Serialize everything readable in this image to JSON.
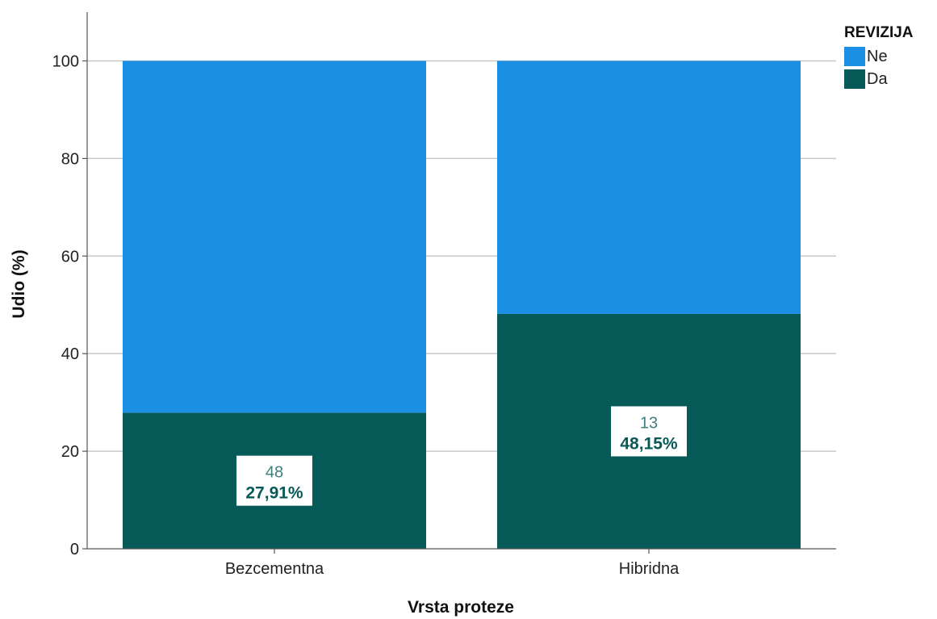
{
  "chart_data": {
    "type": "bar",
    "stacked": true,
    "categories": [
      "Bezcementna",
      "Hibridna"
    ],
    "series": [
      {
        "name": "Da",
        "values": [
          27.91,
          48.15
        ],
        "counts": [
          48,
          13
        ],
        "labels": [
          "27,91%",
          "48,15%"
        ],
        "color": "#055a58"
      },
      {
        "name": "Ne",
        "values": [
          72.09,
          51.85
        ],
        "color": "#1a8fe3"
      }
    ],
    "xlabel": "Vrsta proteze",
    "ylabel": "Udio (%)",
    "ylim": [
      0,
      110
    ],
    "yticks": [
      0,
      20,
      40,
      60,
      80,
      100
    ],
    "grid": true,
    "legend": {
      "title": "REVIZIJA",
      "position": "right",
      "order": [
        "Ne",
        "Da"
      ]
    }
  }
}
